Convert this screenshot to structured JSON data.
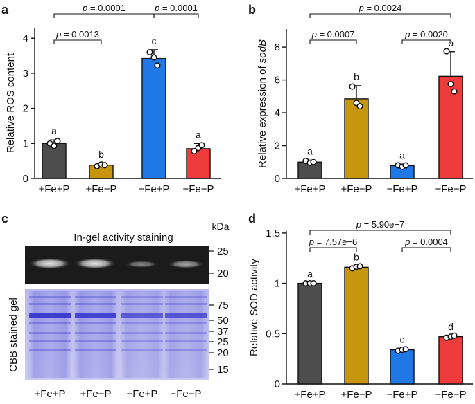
{
  "colors": {
    "pFeP": "#4d4d4d",
    "pFemP": "#c8960c",
    "mFeP": "#1f78e5",
    "mFemP": "#ee3c3c"
  },
  "chart_data": [
    {
      "panel": "a",
      "type": "bar",
      "ylabel": "Relative ROS content",
      "ylim": [
        0,
        4.3
      ],
      "yticks": [
        0,
        1,
        2,
        3,
        4
      ],
      "categories": [
        "+Fe+P",
        "+Fe−P",
        "−Fe+P",
        "−Fe−P"
      ],
      "values": [
        1.0,
        0.38,
        3.42,
        0.85
      ],
      "errors": [
        0.1,
        0.05,
        0.25,
        0.15
      ],
      "points": [
        [
          1.0,
          0.93,
          1.07
        ],
        [
          0.35,
          0.4,
          0.38
        ],
        [
          3.6,
          3.45,
          3.22
        ],
        [
          0.78,
          0.87,
          0.95
        ]
      ],
      "letters": [
        "a",
        "b",
        "c",
        "a"
      ],
      "comparisons": [
        {
          "from": 0,
          "to": 1,
          "label": "p = 0.0013"
        },
        {
          "from": 0,
          "to": 2,
          "label": "p = 0.0001"
        },
        {
          "from": 2,
          "to": 3,
          "label": "p = 0.0001"
        }
      ]
    },
    {
      "panel": "b",
      "type": "bar",
      "ylabel_prefix": "Relative expression of ",
      "ylabel_gene": "sodB",
      "ylim": [
        0,
        9.1
      ],
      "yticks": [
        0,
        2,
        4,
        6,
        8
      ],
      "categories": [
        "+Fe+P",
        "+Fe−P",
        "−Fe+P",
        "−Fe−P"
      ],
      "values": [
        1.0,
        4.85,
        0.78,
        6.22
      ],
      "errors": [
        0.12,
        0.8,
        0.08,
        1.5
      ],
      "points": [
        [
          1.08,
          0.95,
          1.0
        ],
        [
          5.6,
          4.6,
          4.4
        ],
        [
          0.8,
          0.72,
          0.8
        ],
        [
          7.75,
          5.75,
          5.3
        ]
      ],
      "letters": [
        "a",
        "b",
        "a",
        "b"
      ],
      "comparisons": [
        {
          "from": 0,
          "to": 1,
          "label": "p = 0.0007"
        },
        {
          "from": 0,
          "to": 3,
          "label": "p = 0.0024"
        },
        {
          "from": 2,
          "to": 3,
          "label": "p = 0.0020"
        }
      ]
    },
    {
      "panel": "d",
      "type": "bar",
      "ylabel": "Relative SOD activity",
      "ylim": [
        0,
        1.52
      ],
      "yticks": [
        0,
        0.5,
        1,
        1.5
      ],
      "categories": [
        "+Fe+P",
        "+Fe−P",
        "−Fe+P",
        "−Fe−P"
      ],
      "values": [
        1.0,
        1.16,
        0.34,
        0.47
      ],
      "errors": [
        0.008,
        0.012,
        0.015,
        0.012
      ],
      "points": [
        [
          1.0,
          1.0,
          1.0
        ],
        [
          1.15,
          1.165,
          1.17
        ],
        [
          0.33,
          0.34,
          0.345
        ],
        [
          0.46,
          0.47,
          0.48
        ]
      ],
      "letters": [
        "a",
        "b",
        "c",
        "d"
      ],
      "comparisons": [
        {
          "from": 0,
          "to": 1,
          "label": "p = 7.57e−6"
        },
        {
          "from": 0,
          "to": 3,
          "label": "p = 5.90e−7"
        },
        {
          "from": 2,
          "to": 3,
          "label": "p = 0.0004"
        }
      ]
    }
  ],
  "panels": {
    "a": "a",
    "b": "b",
    "c": "c",
    "d": "d"
  },
  "gel": {
    "title": "In-gel activity staining",
    "kda_label": "kDa",
    "activity_markers": [
      "25",
      "20"
    ],
    "cbb_label": "CBB stained gel",
    "cbb_markers": [
      "75",
      "50",
      "37",
      "25",
      "20",
      "15"
    ],
    "lanes": [
      "+Fe+P",
      "+Fe−P",
      "−Fe+P",
      "−Fe−P"
    ]
  }
}
